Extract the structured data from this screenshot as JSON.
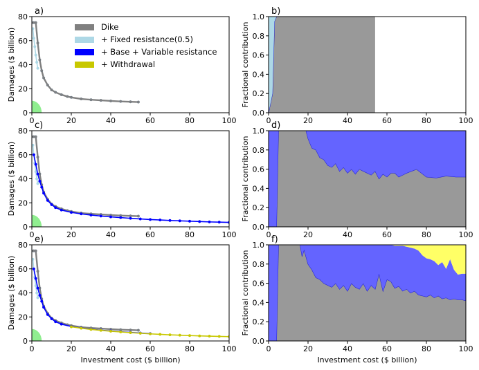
{
  "chart_data": [
    {
      "panel": "a)",
      "type": "scatter",
      "title": "",
      "xlabel": "",
      "ylabel": "Damages ($ billion)",
      "xlim": [
        0,
        100
      ],
      "ylim": [
        0,
        80
      ],
      "xticks": [
        0,
        20,
        40,
        60,
        80,
        100
      ],
      "yticks": [
        0,
        20,
        40,
        60,
        80
      ],
      "series": [
        {
          "name": "Dike",
          "color": "#808080",
          "x": [
            0,
            1,
            2,
            3,
            4,
            5,
            6,
            8,
            10,
            12,
            15,
            18,
            20,
            25,
            30,
            35,
            40,
            45,
            50,
            54
          ],
          "y": [
            75,
            75,
            75,
            58,
            44,
            35,
            29,
            23,
            19,
            17,
            15,
            13.5,
            12.8,
            11.5,
            10.8,
            10.3,
            9.8,
            9.4,
            9.1,
            8.9
          ]
        },
        {
          "name": "+ Fixed resistance(0.5)",
          "color": "#add8e6",
          "x": [
            0.5,
            1,
            1.5,
            2,
            2.5,
            3
          ],
          "y": [
            70,
            62,
            55,
            48,
            42,
            37
          ]
        }
      ]
    },
    {
      "panel": "b)",
      "type": "area",
      "title": "",
      "xlabel": "",
      "ylabel": "Fractional contribution",
      "xlim": [
        0,
        100
      ],
      "ylim": [
        0,
        1.0
      ],
      "xticks": [
        0,
        20,
        40,
        60,
        80,
        100
      ],
      "yticks": [
        0,
        0.2,
        0.4,
        0.6,
        0.8,
        1.0
      ],
      "x": [
        0,
        2,
        3,
        4,
        54
      ],
      "series": [
        {
          "name": "Dike",
          "color": "#999999",
          "values": [
            0,
            0.2,
            0.95,
            1.0,
            1.0
          ]
        },
        {
          "name": "+ Fixed resistance(0.5)",
          "color": "#add8e6",
          "values": [
            1.0,
            0.8,
            0.05,
            0,
            0
          ]
        }
      ]
    },
    {
      "panel": "c)",
      "type": "scatter",
      "title": "",
      "xlabel": "",
      "ylabel": "Damages ($ billion)",
      "xlim": [
        0,
        100
      ],
      "ylim": [
        0,
        80
      ],
      "xticks": [
        0,
        20,
        40,
        60,
        80,
        100
      ],
      "yticks": [
        0,
        20,
        40,
        60,
        80
      ],
      "series": [
        {
          "name": "Dike",
          "color": "#808080",
          "x": [
            0,
            1,
            2,
            3,
            4,
            5,
            6,
            8,
            10,
            12,
            15,
            18,
            20,
            25,
            30,
            35,
            40,
            45,
            50,
            54
          ],
          "y": [
            75,
            75,
            75,
            58,
            44,
            35,
            29,
            23,
            19,
            17,
            15,
            13.5,
            12.8,
            11.5,
            10.8,
            10.3,
            9.8,
            9.4,
            9.1,
            8.9
          ]
        },
        {
          "name": "+ Fixed resistance(0.5)",
          "color": "#add8e6",
          "x": [
            0.5,
            1,
            1.5,
            2,
            2.5,
            3
          ],
          "y": [
            68,
            60,
            53,
            46,
            40,
            36
          ]
        },
        {
          "name": "+ Base + Variable resistance",
          "color": "#0000ff",
          "x": [
            1,
            2,
            3,
            4,
            5,
            6,
            8,
            10,
            12,
            15,
            20,
            25,
            30,
            35,
            40,
            45,
            50,
            55,
            60,
            65,
            70,
            75,
            80,
            85,
            90,
            95,
            100
          ],
          "y": [
            60,
            52,
            44,
            38,
            33,
            28,
            22,
            18.5,
            16,
            14,
            12,
            10.8,
            9.8,
            9,
            8.3,
            7.7,
            7.1,
            6.6,
            6.1,
            5.7,
            5.3,
            5,
            4.7,
            4.4,
            4.1,
            3.9,
            3.7
          ]
        }
      ]
    },
    {
      "panel": "d)",
      "type": "area",
      "title": "",
      "xlabel": "",
      "ylabel": "Fractional contribution",
      "xlim": [
        0,
        100
      ],
      "ylim": [
        0,
        1.0
      ],
      "xticks": [
        0,
        20,
        40,
        60,
        80,
        100
      ],
      "yticks": [
        0,
        0.2,
        0.4,
        0.6,
        0.8,
        1.0
      ],
      "x": [
        0,
        3.5,
        4,
        5,
        19,
        20,
        22,
        24,
        26,
        28,
        30,
        32,
        34,
        36,
        38,
        40,
        42,
        44,
        46,
        48,
        50,
        52,
        54,
        56,
        58,
        60,
        62,
        64,
        66,
        68,
        70,
        75,
        80,
        85,
        90,
        95,
        100
      ],
      "series": [
        {
          "name": "Dike",
          "color": "#999999",
          "values": [
            0,
            0,
            0,
            1.0,
            1.0,
            0.92,
            0.82,
            0.8,
            0.72,
            0.7,
            0.64,
            0.62,
            0.66,
            0.58,
            0.62,
            0.56,
            0.6,
            0.55,
            0.6,
            0.58,
            0.56,
            0.54,
            0.58,
            0.5,
            0.55,
            0.52,
            0.56,
            0.56,
            0.52,
            0.54,
            0.56,
            0.6,
            0.52,
            0.51,
            0.53,
            0.52,
            0.52
          ]
        },
        {
          "name": "+ Base + Variable resistance",
          "color": "#6464ff",
          "values": [
            1.0,
            1.0,
            1.0,
            0,
            0,
            0.08,
            0.18,
            0.2,
            0.28,
            0.3,
            0.36,
            0.38,
            0.34,
            0.42,
            0.38,
            0.44,
            0.4,
            0.45,
            0.4,
            0.42,
            0.44,
            0.46,
            0.42,
            0.5,
            0.45,
            0.48,
            0.44,
            0.44,
            0.48,
            0.46,
            0.44,
            0.4,
            0.48,
            0.49,
            0.47,
            0.48,
            0.48
          ]
        }
      ]
    },
    {
      "panel": "e)",
      "type": "scatter",
      "title": "",
      "xlabel": "Investment cost ($ billion)",
      "ylabel": "Damages ($ billion)",
      "xlim": [
        0,
        100
      ],
      "ylim": [
        0,
        80
      ],
      "xticks": [
        0,
        20,
        40,
        60,
        80,
        100
      ],
      "yticks": [
        0,
        20,
        40,
        60,
        80
      ],
      "series": [
        {
          "name": "Dike",
          "color": "#808080",
          "x": [
            0,
            1,
            2,
            3,
            4,
            5,
            6,
            8,
            10,
            12,
            15,
            18,
            20,
            25,
            30,
            35,
            40,
            45,
            50,
            54
          ],
          "y": [
            75,
            75,
            75,
            58,
            44,
            35,
            29,
            23,
            19,
            17,
            15,
            13.5,
            12.8,
            11.5,
            10.8,
            10.3,
            9.8,
            9.4,
            9.1,
            8.9
          ]
        },
        {
          "name": "+ Fixed resistance(0.5)",
          "color": "#add8e6",
          "x": [
            0.5,
            1,
            1.5,
            2,
            2.5,
            3
          ],
          "y": [
            68,
            60,
            53,
            46,
            40,
            36
          ]
        },
        {
          "name": "+ Base + Variable resistance",
          "color": "#0000ff",
          "x": [
            1,
            2,
            3,
            4,
            5,
            6,
            8,
            10,
            12,
            15,
            20,
            25,
            30,
            35,
            40,
            45,
            50,
            55,
            60
          ],
          "y": [
            60,
            52,
            44,
            38,
            33,
            28,
            22,
            18.5,
            16,
            14,
            12,
            10.8,
            9.8,
            9,
            8.3,
            7.7,
            7.1,
            6.6,
            6.1
          ]
        },
        {
          "name": "+ Withdrawal",
          "color": "#c8c800",
          "x": [
            20,
            25,
            30,
            35,
            40,
            45,
            50,
            55,
            60,
            65,
            70,
            75,
            80,
            85,
            90,
            95,
            100
          ],
          "y": [
            11.8,
            10.6,
            9.6,
            8.8,
            8.1,
            7.5,
            6.9,
            6.4,
            5.9,
            5.5,
            5.1,
            4.8,
            4.5,
            4.2,
            4,
            3.8,
            3.6
          ]
        }
      ]
    },
    {
      "panel": "f)",
      "type": "area",
      "title": "",
      "xlabel": "Investment cost ($ billion)",
      "ylabel": "Fractional contribution",
      "xlim": [
        0,
        100
      ],
      "ylim": [
        0,
        1.0
      ],
      "xticks": [
        0,
        20,
        40,
        60,
        80,
        100
      ],
      "yticks": [
        0,
        0.2,
        0.4,
        0.6,
        0.8,
        1.0
      ],
      "x": [
        0,
        1,
        4,
        5,
        16,
        17,
        18,
        20,
        22,
        24,
        26,
        28,
        30,
        32,
        34,
        36,
        38,
        40,
        42,
        44,
        46,
        48,
        50,
        52,
        54,
        56,
        58,
        60,
        62,
        64,
        66,
        68,
        70,
        72,
        74,
        76,
        78,
        80,
        82,
        84,
        86,
        88,
        90,
        92,
        94,
        96,
        98,
        100
      ],
      "series": [
        {
          "name": "Dike",
          "color": "#999999",
          "values": [
            0,
            0,
            0,
            1.0,
            1.0,
            0.88,
            0.95,
            0.8,
            0.74,
            0.66,
            0.64,
            0.6,
            0.58,
            0.56,
            0.6,
            0.54,
            0.58,
            0.52,
            0.6,
            0.56,
            0.54,
            0.6,
            0.52,
            0.58,
            0.54,
            0.7,
            0.52,
            0.64,
            0.62,
            0.55,
            0.57,
            0.52,
            0.54,
            0.5,
            0.52,
            0.48,
            0.47,
            0.46,
            0.48,
            0.45,
            0.47,
            0.44,
            0.45,
            0.43,
            0.44,
            0.43,
            0.43,
            0.42
          ]
        },
        {
          "name": "+ Base + Variable resistance",
          "color": "#6464ff",
          "values": [
            1.0,
            1.0,
            1.0,
            0,
            0,
            0.12,
            0.05,
            0.2,
            0.26,
            0.34,
            0.36,
            0.4,
            0.42,
            0.44,
            0.4,
            0.46,
            0.42,
            0.48,
            0.4,
            0.44,
            0.46,
            0.4,
            0.48,
            0.42,
            0.46,
            0.3,
            0.48,
            0.36,
            0.38,
            0.44,
            0.42,
            0.47,
            0.44,
            0.47,
            0.44,
            0.46,
            0.42,
            0.4,
            0.37,
            0.38,
            0.32,
            0.38,
            0.3,
            0.42,
            0.3,
            0.26,
            0.27,
            0.28
          ]
        },
        {
          "name": "+ Withdrawal",
          "color": "#ffff66",
          "values": [
            0,
            0,
            0,
            0,
            0,
            0,
            0,
            0,
            0,
            0,
            0,
            0,
            0,
            0,
            0,
            0,
            0,
            0,
            0,
            0,
            0,
            0,
            0,
            0,
            0,
            0,
            0,
            0,
            0,
            0.01,
            0.01,
            0.01,
            0.02,
            0.03,
            0.04,
            0.06,
            0.11,
            0.14,
            0.15,
            0.17,
            0.21,
            0.18,
            0.25,
            0.15,
            0.26,
            0.31,
            0.3,
            0.3
          ]
        }
      ]
    }
  ],
  "legend": {
    "items": [
      {
        "label": "Dike",
        "color": "#808080"
      },
      {
        "label": "+ Fixed resistance(0.5)",
        "color": "#add8e6"
      },
      {
        "label": "+ Base + Variable resistance",
        "color": "#0000ff"
      },
      {
        "label": "+ Withdrawal",
        "color": "#c8c800"
      }
    ]
  },
  "region_color": "#90ee90"
}
